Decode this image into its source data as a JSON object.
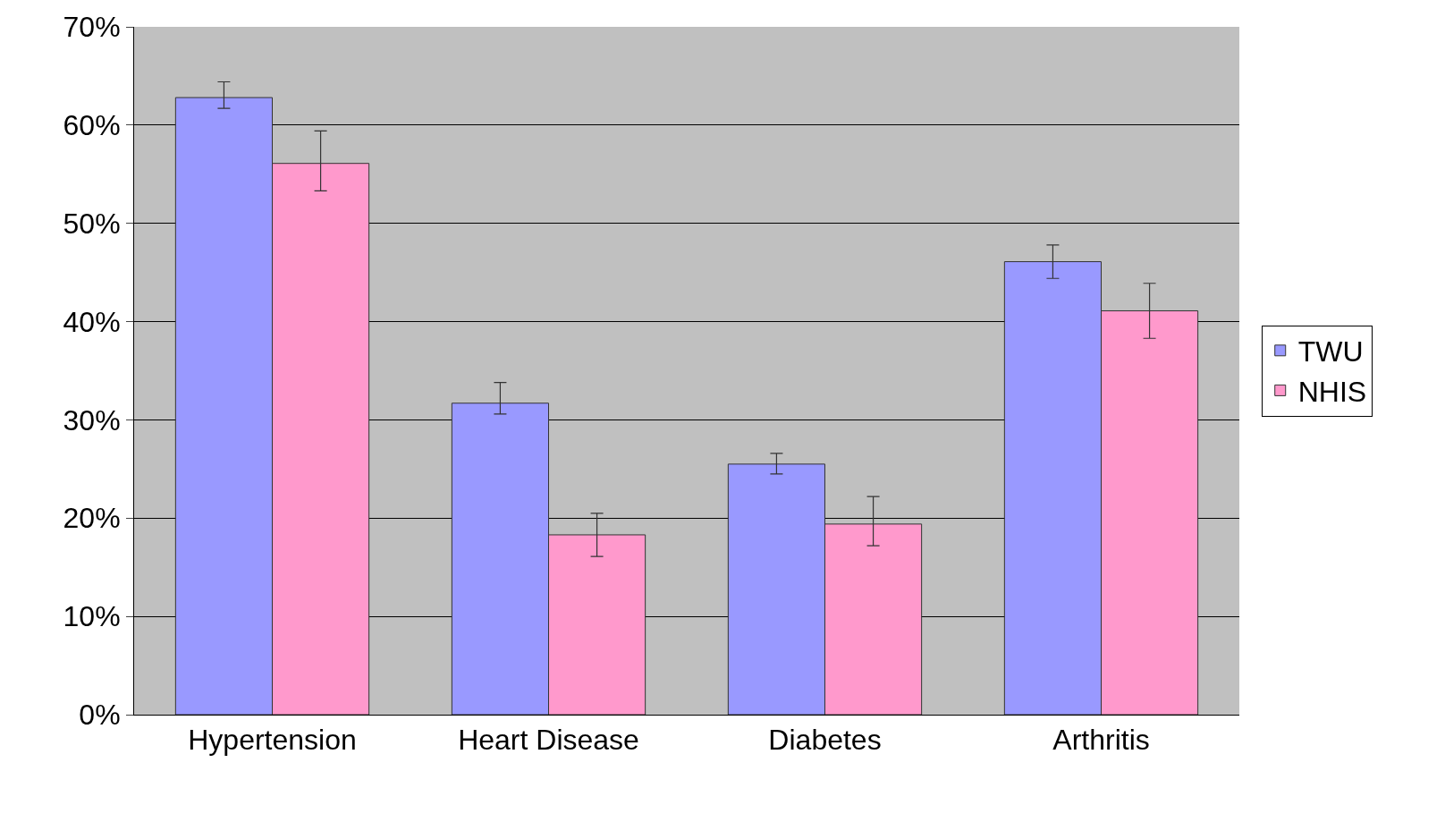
{
  "chart_data": {
    "type": "bar",
    "categories": [
      "Hypertension",
      "Heart Disease",
      "Diabetes",
      "Arthritis"
    ],
    "series": [
      {
        "name": "TWU",
        "color": "#9999ff",
        "values": [
          62.8,
          31.7,
          25.5,
          46.1
        ],
        "errors": [
          [
            61.7,
            64.4
          ],
          [
            30.6,
            33.8
          ],
          [
            24.5,
            26.6
          ],
          [
            44.4,
            47.8
          ]
        ]
      },
      {
        "name": "NHIS",
        "color": "#ff99cc",
        "values": [
          56.1,
          18.3,
          19.4,
          41.1
        ],
        "errors": [
          [
            53.3,
            59.4
          ],
          [
            16.1,
            20.5
          ],
          [
            17.2,
            22.2
          ],
          [
            38.3,
            43.9
          ]
        ]
      }
    ],
    "ylim": [
      0,
      70
    ],
    "yticks": [
      {
        "value": 0,
        "label": "0%"
      },
      {
        "value": 10,
        "label": "10%"
      },
      {
        "value": 20,
        "label": "20%"
      },
      {
        "value": 30,
        "label": "30%"
      },
      {
        "value": 40,
        "label": "40%"
      },
      {
        "value": 50,
        "label": "50%"
      },
      {
        "value": 60,
        "label": "60%"
      },
      {
        "value": 70,
        "label": "70%"
      }
    ],
    "grid": "y",
    "legend": "right"
  }
}
